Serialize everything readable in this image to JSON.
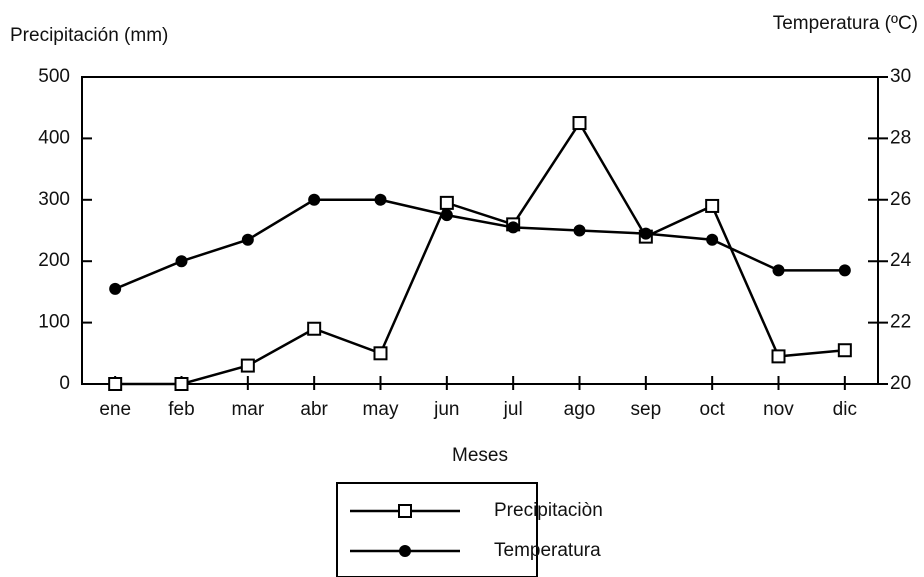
{
  "chart_data": {
    "type": "line",
    "ylabel": "Precipitación  (mm)",
    "y2label": "Temperatura  (ºC)",
    "xlabel": "Meses",
    "categories": [
      "ene",
      "feb",
      "mar",
      "abr",
      "may",
      "jun",
      "jul",
      "ago",
      "sep",
      "oct",
      "nov",
      "dic"
    ],
    "series": [
      {
        "name": "Precipitaciòn",
        "color": "#000000",
        "marker": "square",
        "values": [
          0,
          0,
          30,
          90,
          50,
          295,
          260,
          425,
          240,
          290,
          45,
          55
        ]
      },
      {
        "name": "Temperatura",
        "color": "#000000",
        "marker": "circle",
        "axis": "y2",
        "values": [
          23.1,
          24.0,
          24.7,
          26.0,
          26.0,
          25.5,
          25.1,
          25.0,
          24.9,
          24.7,
          23.7,
          23.7
        ]
      }
    ],
    "ylim": [
      0,
      500
    ],
    "yticks": [
      0,
      100,
      200,
      300,
      400,
      500
    ],
    "y2lim": [
      20,
      30
    ],
    "y2ticks": [
      20,
      22,
      24,
      26,
      28,
      30
    ]
  }
}
